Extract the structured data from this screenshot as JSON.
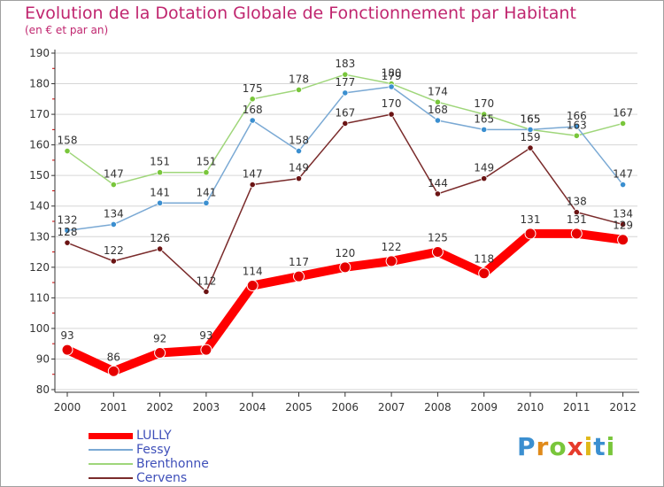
{
  "header": {
    "title": "Evolution de la Dotation Globale de Fonctionnement par Habitant",
    "subtitle": "(en € et par an)"
  },
  "colors": {
    "title": "#c0266f",
    "grid": "#d6d6d6",
    "axis": "#333333",
    "tick_text": "#333333",
    "legend_text": "#3e4fb9"
  },
  "chart_data": {
    "type": "line",
    "title": "Evolution de la Dotation Globale de Fonctionnement par Habitant",
    "ylabel": "(en € et par an)",
    "xlabel": "",
    "categories": [
      "2000",
      "2001",
      "2002",
      "2003",
      "2004",
      "2005",
      "2006",
      "2007",
      "2008",
      "2009",
      "2010",
      "2011",
      "2012"
    ],
    "ylim": [
      80,
      190
    ],
    "yticks": [
      80,
      90,
      100,
      110,
      120,
      130,
      140,
      150,
      160,
      170,
      180,
      190
    ],
    "grid": true,
    "series": [
      {
        "name": "LULLY",
        "color": "#ff0000",
        "marker": "#e60000",
        "values": [
          93,
          86,
          92,
          93,
          114,
          117,
          120,
          122,
          125,
          118,
          131,
          131,
          129
        ]
      },
      {
        "name": "Fessy",
        "color": "#7aa9d4",
        "marker": "#3b8fd0",
        "values": [
          132,
          134,
          141,
          141,
          168,
          158,
          177,
          179,
          168,
          165,
          165,
          166,
          147
        ]
      },
      {
        "name": "Brenthonne",
        "color": "#9fd67a",
        "marker": "#79c63b",
        "values": [
          158,
          147,
          151,
          151,
          175,
          178,
          183,
          180,
          174,
          170,
          165,
          163,
          167
        ]
      },
      {
        "name": "Cervens",
        "color": "#7a2b2b",
        "marker": "#6b1414",
        "values": [
          128,
          122,
          126,
          112,
          147,
          149,
          167,
          170,
          144,
          149,
          159,
          138,
          134
        ]
      }
    ]
  },
  "logo": {
    "letters": [
      "P",
      "r",
      "o",
      "x",
      "i",
      "t",
      "i"
    ],
    "colors": [
      "#3b8fd0",
      "#e08a1a",
      "#79c63b",
      "#e63b2b",
      "#e0b81a",
      "#3b8fd0",
      "#79c63b"
    ]
  }
}
